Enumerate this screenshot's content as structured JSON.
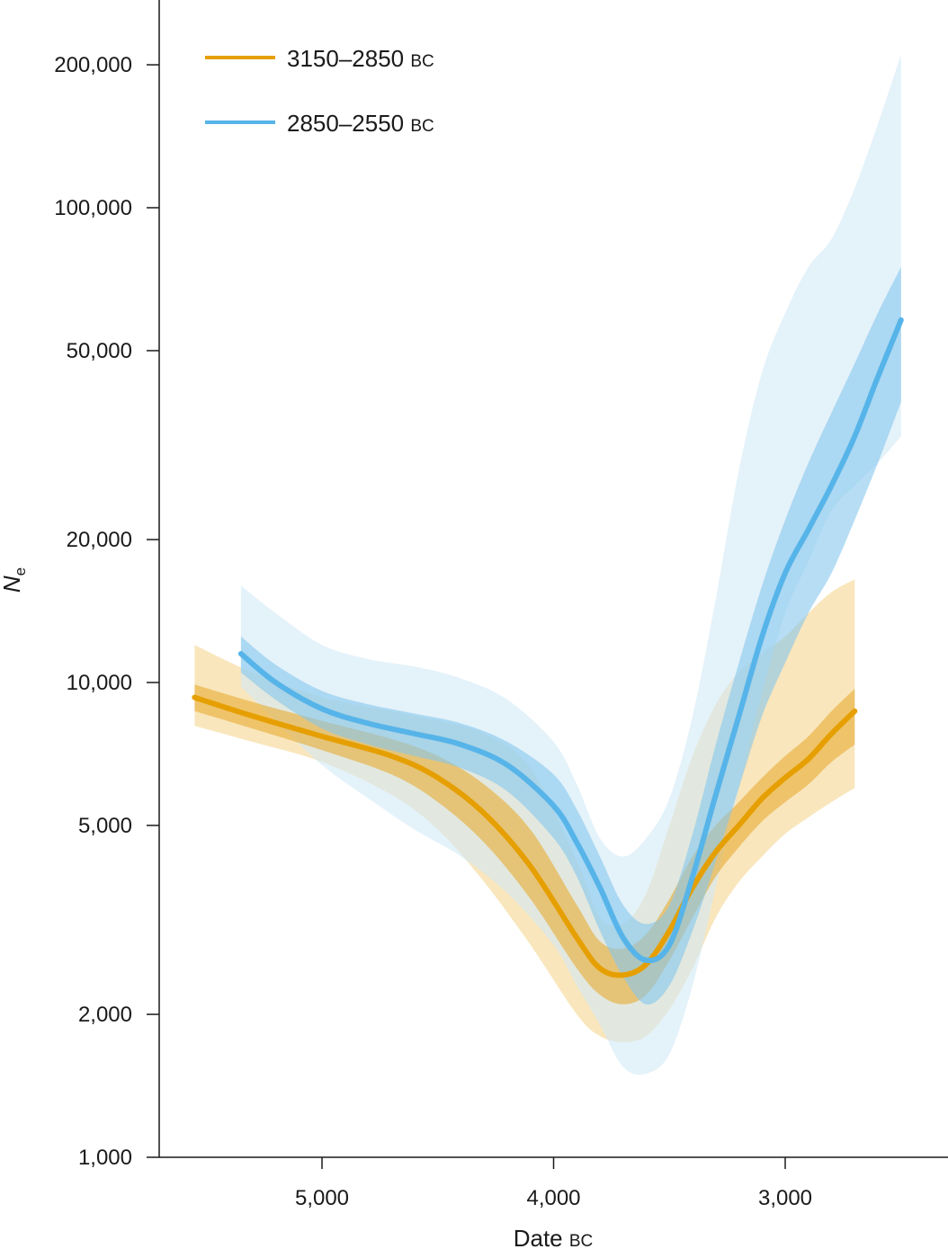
{
  "chart_data": {
    "type": "line",
    "title": "",
    "xlabel": {
      "main": "Date",
      "suffix": "BC"
    },
    "ylabel": {
      "main": "N",
      "sub": "e"
    },
    "x_reversed": true,
    "xlim": [
      5700,
      2300
    ],
    "ylim": [
      1000,
      300000
    ],
    "y_scale": "log",
    "x_ticks": [
      {
        "value": 5000,
        "label": "5,000"
      },
      {
        "value": 4000,
        "label": "4,000"
      },
      {
        "value": 3000,
        "label": "3,000"
      }
    ],
    "y_ticks": [
      {
        "value": 1000,
        "label": "1,000"
      },
      {
        "value": 2000,
        "label": "2,000"
      },
      {
        "value": 5000,
        "label": "5,000"
      },
      {
        "value": 10000,
        "label": "10,000"
      },
      {
        "value": 20000,
        "label": "20,000"
      },
      {
        "value": 50000,
        "label": "50,000"
      },
      {
        "value": 100000,
        "label": "100,000"
      },
      {
        "value": 200000,
        "label": "200,000"
      }
    ],
    "legend": {
      "placement": "top-left"
    },
    "series": [
      {
        "name": "3150–2850",
        "name_suffix": "BC",
        "color": "#E69F00",
        "band_inner_color": "#E8AC33",
        "band_outer_color": "#F5D58F",
        "x": [
          5550,
          5300,
          5000,
          4700,
          4500,
          4300,
          4100,
          3900,
          3800,
          3700,
          3600,
          3500,
          3400,
          3300,
          3200,
          3100,
          3000,
          2900,
          2800,
          2700
        ],
        "median": [
          9300,
          8500,
          7700,
          7000,
          6300,
          5300,
          4100,
          2900,
          2500,
          2420,
          2550,
          3000,
          3700,
          4400,
          5000,
          5700,
          6300,
          6900,
          7800,
          8700
        ],
        "inner_lower": [
          8700,
          8000,
          7200,
          6400,
          5600,
          4600,
          3500,
          2500,
          2200,
          2100,
          2200,
          2600,
          3200,
          3900,
          4500,
          5100,
          5600,
          6100,
          6800,
          7400
        ],
        "inner_upper": [
          9900,
          9100,
          8300,
          7600,
          7000,
          6100,
          4900,
          3400,
          2850,
          2750,
          2950,
          3500,
          4300,
          5000,
          5600,
          6300,
          7000,
          7700,
          8700,
          9700
        ],
        "outer_lower": [
          8100,
          7500,
          6800,
          5800,
          4900,
          3800,
          2800,
          2000,
          1800,
          1750,
          1800,
          2050,
          2500,
          3200,
          3800,
          4300,
          4800,
          5200,
          5600,
          6000
        ],
        "outer_upper": [
          12000,
          10500,
          9300,
          8700,
          8300,
          7800,
          6600,
          4200,
          3200,
          3100,
          3600,
          5000,
          7000,
          9000,
          10500,
          11500,
          12500,
          14000,
          15500,
          16500
        ]
      },
      {
        "name": "2850–2550",
        "name_suffix": "BC",
        "color": "#56B4E9",
        "band_inner_color": "#86C6EC",
        "band_outer_color": "#D2EAF7",
        "x": [
          5350,
          5200,
          5000,
          4800,
          4600,
          4400,
          4200,
          4000,
          3900,
          3800,
          3700,
          3600,
          3500,
          3400,
          3300,
          3200,
          3100,
          3000,
          2900,
          2800,
          2700,
          2600,
          2500
        ],
        "median": [
          11500,
          10000,
          8800,
          8200,
          7800,
          7400,
          6700,
          5500,
          4600,
          3700,
          2900,
          2600,
          2800,
          3900,
          5800,
          8500,
          12500,
          17000,
          21000,
          26000,
          33000,
          44000,
          58000
        ],
        "inner_lower": [
          10500,
          9200,
          8000,
          7400,
          7000,
          6600,
          5900,
          4700,
          3900,
          3000,
          2400,
          2100,
          2300,
          3000,
          4200,
          6000,
          8500,
          11000,
          14000,
          17000,
          22000,
          29000,
          39000
        ],
        "inner_upper": [
          12500,
          10900,
          9600,
          9000,
          8600,
          8200,
          7500,
          6400,
          5400,
          4300,
          3400,
          3100,
          3400,
          4800,
          7400,
          11000,
          16000,
          22000,
          29000,
          37000,
          47000,
          60000,
          75000
        ],
        "outer_lower": [
          9800,
          8300,
          6700,
          5700,
          4900,
          4300,
          3600,
          2800,
          2300,
          1900,
          1550,
          1500,
          1650,
          2300,
          3700,
          6000,
          9500,
          14000,
          18000,
          23000,
          26000,
          29000,
          33000
        ],
        "outer_upper": [
          16000,
          14000,
          12000,
          11200,
          10800,
          10200,
          9200,
          7500,
          6100,
          4700,
          4300,
          4700,
          5700,
          8500,
          15000,
          28000,
          45000,
          60000,
          75000,
          86000,
          110000,
          150000,
          210000
        ]
      }
    ]
  }
}
